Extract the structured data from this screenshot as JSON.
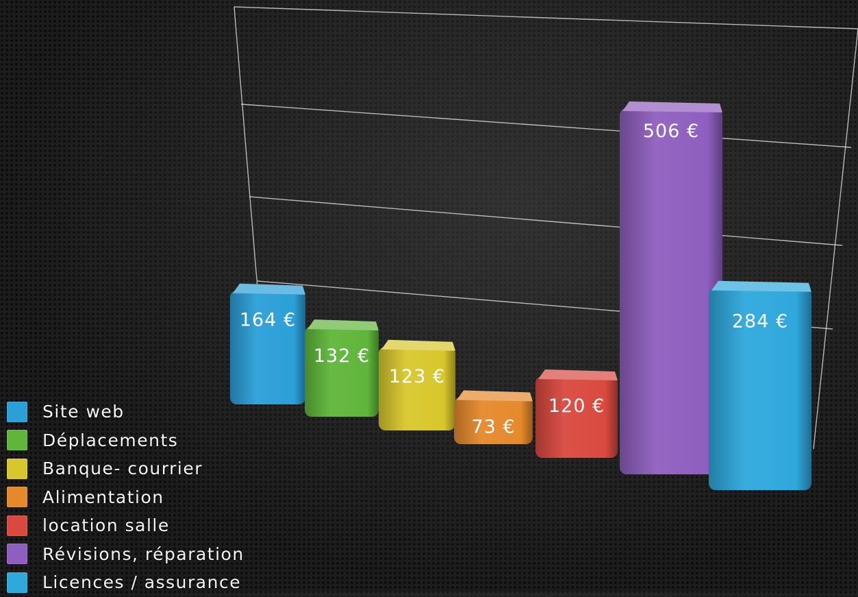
{
  "chart_data": {
    "type": "bar",
    "categories": [
      "Site web",
      "Déplacements",
      "Banque- courrier",
      "Alimentation",
      "location salle",
      "Révisions, réparation",
      "Licences / assurance"
    ],
    "values": [
      164,
      132,
      123,
      73,
      120,
      506,
      284
    ],
    "value_labels": [
      "164 €",
      "132 €",
      "123 €",
      "73 €",
      "120 €",
      "506 €",
      "284 €"
    ],
    "colors": [
      "#2b9fd8",
      "#5fb63a",
      "#d8c72c",
      "#e5892c",
      "#d9493f",
      "#8f5fbf",
      "#2fa8dc"
    ],
    "legend_position": "bottom-left",
    "grid": true,
    "style": "3d"
  },
  "legend": {
    "items": [
      {
        "label": "Site web",
        "color": "#2b9fd8"
      },
      {
        "label": "Déplacements",
        "color": "#5fb63a"
      },
      {
        "label": "Banque- courrier",
        "color": "#d8c72c"
      },
      {
        "label": "Alimentation",
        "color": "#e5892c"
      },
      {
        "label": "location salle",
        "color": "#d9493f"
      },
      {
        "label": "Révisions, réparation",
        "color": "#8f5fbf"
      },
      {
        "label": "Licences / assurance",
        "color": "#2fa8dc"
      }
    ]
  }
}
